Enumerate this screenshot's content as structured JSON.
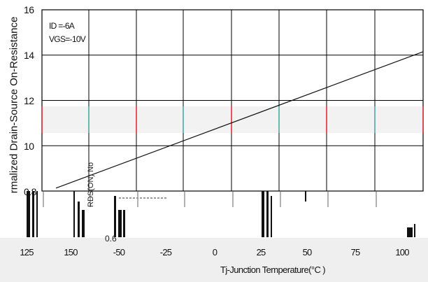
{
  "chart_data": {
    "type": "line",
    "title": "",
    "ylabel": "rmalized Drain-Source On-Resistance",
    "xlabel": "Tj-Junction Temperature(°C )",
    "annotations": [
      "ID =-6A",
      "VGS=-10V"
    ],
    "y_ticks": [
      "0.8",
      "10",
      "12",
      "14",
      "16"
    ],
    "x_ticks": [
      "125",
      "150",
      "-50",
      "-25",
      "0",
      "25",
      "50",
      "75",
      "100"
    ],
    "ylim": [
      0.8,
      1.6
    ],
    "x": [
      -60,
      125
    ],
    "series": [
      {
        "values": [
          0.79,
          1.415
        ]
      }
    ],
    "grid": true,
    "artifact_text": [
      "RDS(ON) No",
      "0.6"
    ]
  }
}
